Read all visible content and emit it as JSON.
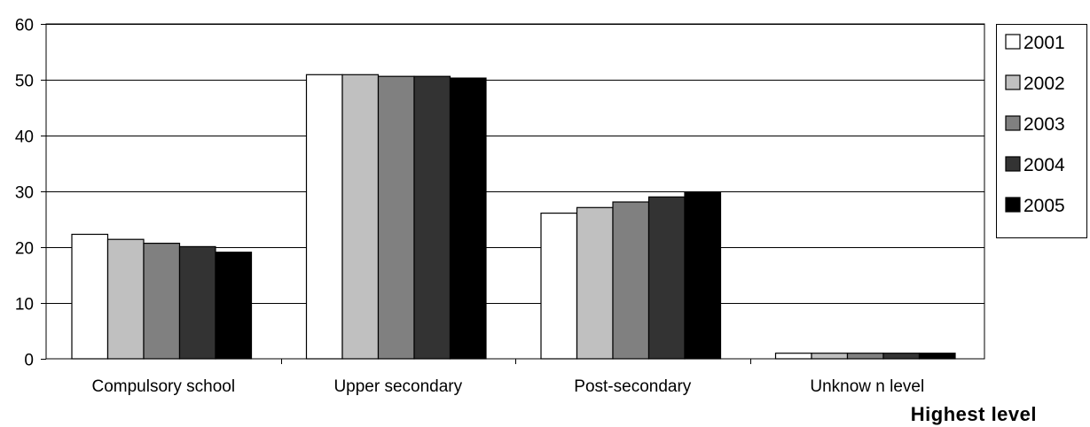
{
  "chart_data": {
    "type": "bar",
    "title": "",
    "ylabel": "",
    "xlabel": "Highest level",
    "ylim": [
      0,
      60
    ],
    "yticks": [
      0,
      10,
      20,
      30,
      40,
      50,
      60
    ],
    "grid": true,
    "legend_position": "right",
    "categories": [
      "Compulsory school",
      "Upper secondary",
      "Post-secondary",
      "Unknow n level"
    ],
    "series": [
      {
        "name": "2001",
        "color": "#ffffff",
        "values": [
          22.3,
          50.9,
          26.1,
          1.0
        ]
      },
      {
        "name": "2002",
        "color": "#c0c0c0",
        "values": [
          21.4,
          50.9,
          27.1,
          1.0
        ]
      },
      {
        "name": "2003",
        "color": "#808080",
        "values": [
          20.7,
          50.6,
          28.1,
          1.0
        ]
      },
      {
        "name": "2004",
        "color": "#333333",
        "values": [
          20.1,
          50.6,
          29.0,
          1.0
        ]
      },
      {
        "name": "2005",
        "color": "#000000",
        "values": [
          19.1,
          50.3,
          29.9,
          1.0
        ]
      }
    ]
  }
}
